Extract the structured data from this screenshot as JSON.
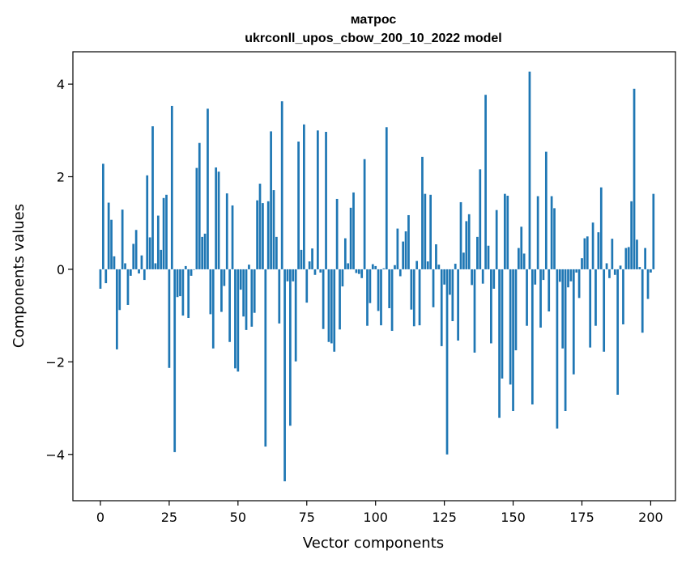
{
  "chart_data": {
    "type": "bar",
    "title": "матрос",
    "subtitle": "ukrconll_upos_cbow_200_10_2022 model",
    "xlabel": "Vector components",
    "ylabel": "Components values",
    "xlim": [
      -10,
      209
    ],
    "ylim": [
      -5.0,
      4.7
    ],
    "xticks": [
      0,
      25,
      50,
      75,
      100,
      125,
      150,
      175,
      200
    ],
    "yticks": [
      -4,
      -2,
      0,
      2,
      4
    ],
    "bar_color": "#1f77b4",
    "grid": false,
    "legend": "none",
    "values": [
      -0.42,
      2.28,
      -0.3,
      1.44,
      1.07,
      0.28,
      -1.73,
      -0.88,
      1.29,
      0.13,
      -0.77,
      -0.14,
      0.55,
      0.85,
      -0.09,
      0.3,
      -0.23,
      2.03,
      0.69,
      3.09,
      0.13,
      1.16,
      0.42,
      1.54,
      1.61,
      -2.13,
      3.53,
      -3.95,
      -0.6,
      -0.58,
      -1.0,
      0.07,
      -1.05,
      -0.14,
      -0.01,
      2.19,
      2.73,
      0.7,
      0.77,
      3.47,
      -0.97,
      -1.71,
      2.2,
      2.11,
      -0.92,
      -0.36,
      1.64,
      -1.57,
      1.38,
      -2.14,
      -2.21,
      -0.44,
      -1.02,
      -1.31,
      0.1,
      -1.24,
      -0.94,
      1.49,
      1.85,
      1.43,
      -3.83,
      1.47,
      2.98,
      1.71,
      0.7,
      -1.17,
      3.63,
      -4.58,
      -0.26,
      -3.38,
      -0.26,
      -1.99,
      2.76,
      0.42,
      3.13,
      -0.72,
      0.17,
      0.45,
      -0.12,
      3.0,
      -0.07,
      -1.29,
      2.97,
      -1.57,
      -1.6,
      -1.78,
      1.52,
      -1.3,
      -0.37,
      0.67,
      0.13,
      1.33,
      1.66,
      -0.08,
      -0.1,
      -0.19,
      2.38,
      -1.22,
      -0.73,
      0.11,
      0.07,
      -0.9,
      -1.21,
      0.02,
      3.07,
      -0.84,
      -1.33,
      0.09,
      0.88,
      -0.15,
      0.6,
      0.82,
      1.17,
      -0.87,
      -1.23,
      0.18,
      -1.21,
      2.43,
      1.63,
      0.17,
      1.61,
      -0.82,
      0.54,
      0.1,
      -1.66,
      -0.33,
      -4.0,
      -0.55,
      -1.12,
      0.12,
      -1.54,
      1.45,
      0.36,
      1.04,
      1.19,
      -0.34,
      -1.8,
      0.7,
      2.16,
      -0.31,
      3.77,
      0.51,
      -1.6,
      -0.42,
      1.28,
      -3.21,
      -2.36,
      1.63,
      1.59,
      -2.49,
      -3.06,
      -1.75,
      0.46,
      0.92,
      0.34,
      -1.22,
      4.27,
      -2.92,
      -0.33,
      1.58,
      -1.26,
      -0.23,
      2.54,
      -0.91,
      1.58,
      1.32,
      -3.44,
      -0.27,
      -1.71,
      -3.06,
      -0.39,
      -0.26,
      -2.27,
      -0.07,
      -0.62,
      0.24,
      0.67,
      0.71,
      -1.69,
      1.01,
      -1.22,
      0.8,
      1.77,
      -1.78,
      0.13,
      -0.19,
      0.66,
      -0.12,
      -2.71,
      0.08,
      -1.19,
      0.46,
      0.48,
      1.47,
      3.9,
      0.64,
      0.05,
      -1.37,
      0.46,
      -0.64,
      -0.07,
      1.63
    ]
  }
}
